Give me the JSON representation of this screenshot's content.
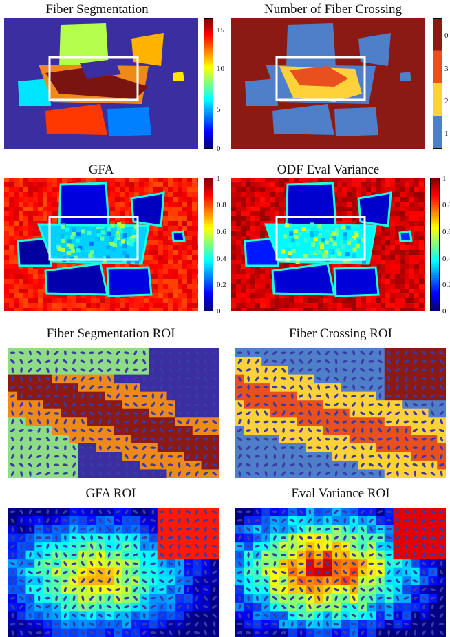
{
  "panels": [
    {
      "id": "p1",
      "title": "Fiber Segmentation",
      "colormap": "jet",
      "colorbar": {
        "ticks": [
          "15",
          "10",
          "5",
          "0"
        ]
      }
    },
    {
      "id": "p2",
      "title": "Number of Fiber Crossing",
      "colormap": "discrete",
      "colorbar": {
        "ticks": [
          "0",
          "3",
          "2",
          "1"
        ]
      }
    },
    {
      "id": "p3",
      "title": "GFA",
      "colormap": "jet_r",
      "colorbar": {
        "ticks": [
          "1",
          "0.8",
          "0.6",
          "0.4",
          "0.2",
          "0"
        ]
      }
    },
    {
      "id": "p4",
      "title": "ODF Eval Variance",
      "colormap": "jet_r",
      "colorbar": {
        "ticks": [
          "1",
          "0.8",
          "0.6",
          "0.4",
          "0.2",
          "0"
        ]
      }
    },
    {
      "id": "p5",
      "title": "Fiber Segmentation ROI"
    },
    {
      "id": "p6",
      "title": "Fiber Crossing ROI"
    },
    {
      "id": "p7",
      "title": "GFA ROI"
    },
    {
      "id": "p8",
      "title": "Eval Variance ROI"
    }
  ],
  "colors": {
    "jet_dark_blue": "#3b2ea0",
    "jet_red": "#c0281e",
    "dark_red": "#8b1a14",
    "discrete_blue": "#4f7fc8",
    "discrete_yellow": "#ffd23a",
    "discrete_orange": "#e8501e",
    "roi_box": "#ffffff"
  }
}
